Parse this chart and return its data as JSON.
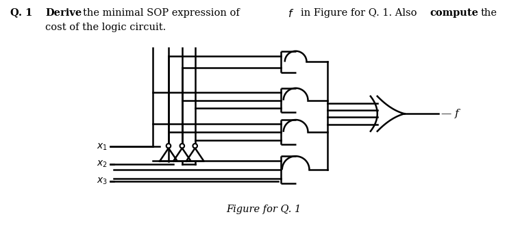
{
  "bg_color": "#ffffff",
  "line_color": "#000000",
  "lw": 1.8,
  "thin_lw": 1.2,
  "text_color": "#000000",
  "figure_caption": "Figure for Q. 1",
  "header_q": "Q. 1",
  "header_bold1": "Derive",
  "header_normal1": " the minimal SOP expression of ",
  "header_italic": "f",
  "header_normal2": " in Figure for Q. 1. Also ",
  "header_bold2": "compute",
  "header_normal3": " the",
  "header_line2": "cost of the logic circuit.",
  "fontsize_header": 10.5,
  "fontsize_label": 9.5,
  "fontsize_caption": 10.5,
  "fontsize_f": 11,
  "x1_label": "$x_1$",
  "x2_label": "$x_2$",
  "x3_label": "$x_3$",
  "f_label": "f"
}
